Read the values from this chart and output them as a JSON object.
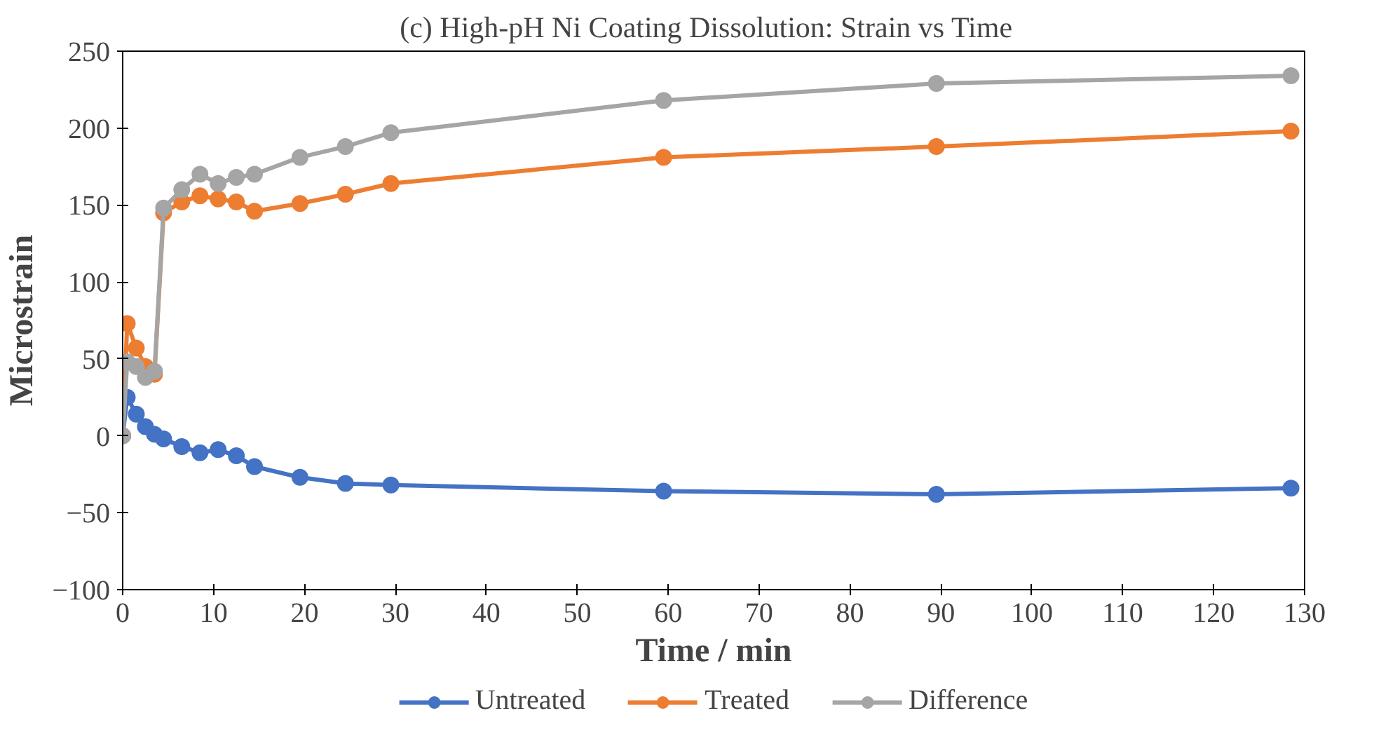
{
  "chart_data": {
    "type": "line",
    "title": "(c) High-pH  Ni Coating Dissolution:  Strain vs Time",
    "xlabel": "Time / min",
    "ylabel": "Microstrain",
    "x": [
      0,
      0.5,
      1.5,
      2.5,
      3.5,
      4.5,
      6.5,
      8.5,
      10.5,
      12.5,
      14.5,
      19.5,
      24.5,
      29.5,
      59.5,
      89.5,
      128.5
    ],
    "series": [
      {
        "name": "Untreated",
        "color": "#4472c4",
        "values": [
          0,
          25,
          14,
          6,
          1,
          -2,
          -7,
          -11,
          -9,
          -13,
          -20,
          -27,
          -31,
          -32,
          -36,
          -38,
          -34
        ]
      },
      {
        "name": "Treated",
        "color": "#ed7d31",
        "values": [
          0,
          73,
          57,
          45,
          40,
          145,
          152,
          156,
          154,
          152,
          146,
          151,
          157,
          164,
          181,
          188,
          198
        ]
      },
      {
        "name": "Difference",
        "color": "#a5a5a5",
        "values": [
          0,
          48,
          45,
          38,
          42,
          148,
          160,
          170,
          164,
          168,
          170,
          181,
          188,
          197,
          218,
          229,
          234
        ]
      }
    ],
    "xlim": [
      0,
      130
    ],
    "xticks": [
      0,
      10,
      20,
      30,
      40,
      50,
      60,
      70,
      80,
      90,
      100,
      110,
      120,
      130
    ],
    "ylim": [
      -100,
      250
    ],
    "yticks": [
      -100,
      -50,
      0,
      50,
      100,
      150,
      200,
      250
    ],
    "grid": false,
    "legend": "bottom",
    "marker": "circle",
    "line_style": "solid"
  }
}
